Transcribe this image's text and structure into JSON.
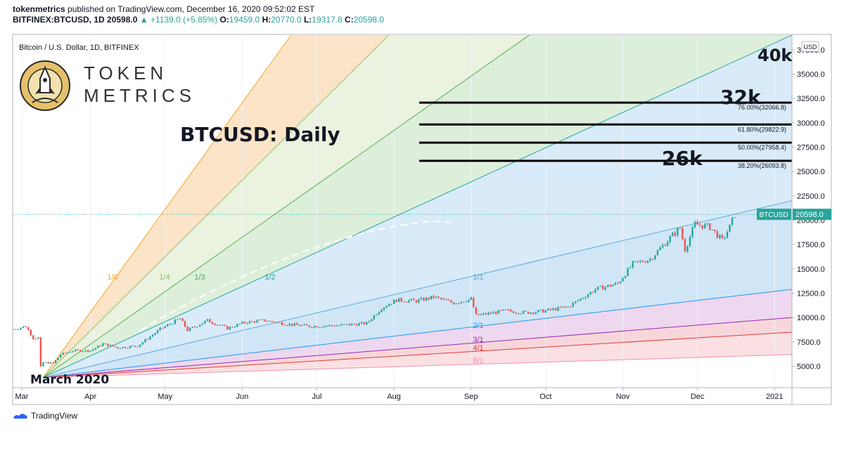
{
  "header": {
    "publisher": "tokenmetrics",
    "published_text": " published on TradingView.com, December 16, 2020 09:52:02 EST",
    "symbol": "BITFINEX:BTCUSD, 1D",
    "last": "20598.0",
    "change": "▲ +1139.0 (+5.85%)",
    "o_label": "O:",
    "o_value": "19459.0",
    "h_label": "H:",
    "h_value": "20770.0",
    "l_label": "L:",
    "l_value": "19317.8",
    "c_label": "C:",
    "c_value": "20598.0"
  },
  "pane_title": "Bitcoin / U.S. Dollar, 1D, BITFINEX",
  "logo": {
    "line1": "TOKEN",
    "line2": "METRICS"
  },
  "chart_title": "BTCUSD: Daily",
  "currency": "USD",
  "price_tag": "BTCUSD",
  "annotations": {
    "k40": "40k",
    "k32": "32k",
    "k26": "26k",
    "march": "March 2020"
  },
  "footer": {
    "brand": "TradingView"
  },
  "colors": {
    "up": "#26a69a",
    "down": "#ef5350",
    "tag": "#26a69a"
  },
  "chart_data": {
    "type": "line",
    "title": "BTCUSD: Daily",
    "x_ticks": [
      "Mar",
      "Apr",
      "May",
      "Jun",
      "Jul",
      "Aug",
      "Sep",
      "Oct",
      "Nov",
      "Dec",
      "2021"
    ],
    "y_ticks": [
      "5000.0",
      "7500.0",
      "10000.0",
      "12500.0",
      "15000.0",
      "17500.0",
      "20000.0",
      "22500.0",
      "25000.0",
      "27500.0",
      "30000.0",
      "32500.0",
      "35000.0",
      "37500.0"
    ],
    "ylim": [
      2800,
      39000
    ],
    "last_price": "20598.0",
    "fib_levels": [
      {
        "label": "76.00%(32066.8)",
        "price": 32066.8
      },
      {
        "label": "61.80%(29822.9)",
        "price": 29822.9
      },
      {
        "label": "50.00%(27958.4)",
        "price": 27958.4
      },
      {
        "label": "38.20%(26093.8)",
        "price": 26093.8
      }
    ],
    "gann_fan": {
      "origin": {
        "date": "2020-03-13",
        "price": 3850
      },
      "lines": [
        {
          "label": "1/8",
          "color": "#f5a623",
          "end_price": 110000
        },
        {
          "label": "1/4",
          "color": "#8fbf6a",
          "end_price": 80000
        },
        {
          "label": "1/3",
          "color": "#4caf50",
          "end_price": 58000
        },
        {
          "label": "1/2",
          "color": "#26a69a",
          "end_price": 39000
        },
        {
          "label": "1/1",
          "color": "#5aa9d6",
          "end_price": 22000
        },
        {
          "label": "2/1",
          "color": "#2196f3",
          "end_price": 12900
        },
        {
          "label": "3/1",
          "color": "#9c27b0",
          "end_price": 10000
        },
        {
          "label": "4/1",
          "color": "#e53935",
          "end_price": 8500
        },
        {
          "label": "8/1",
          "color": "#f48fb1",
          "end_price": 6200
        }
      ]
    },
    "series": [
      {
        "values": [
          {
            "d": "2020-03-01",
            "p": 8800
          },
          {
            "d": "2020-03-06",
            "p": 9100
          },
          {
            "d": "2020-03-09",
            "p": 7900
          },
          {
            "d": "2020-03-11",
            "p": 7900
          },
          {
            "d": "2020-03-12",
            "p": 4900
          },
          {
            "d": "2020-03-13",
            "p": 5400
          },
          {
            "d": "2020-03-17",
            "p": 5300
          },
          {
            "d": "2020-03-20",
            "p": 6200
          },
          {
            "d": "2020-03-25",
            "p": 6600
          },
          {
            "d": "2020-04-01",
            "p": 6600
          },
          {
            "d": "2020-04-06",
            "p": 7300
          },
          {
            "d": "2020-04-12",
            "p": 6900
          },
          {
            "d": "2020-04-20",
            "p": 7100
          },
          {
            "d": "2020-04-29",
            "p": 8800
          },
          {
            "d": "2020-05-07",
            "p": 9900
          },
          {
            "d": "2020-05-10",
            "p": 8700
          },
          {
            "d": "2020-05-18",
            "p": 9700
          },
          {
            "d": "2020-05-26",
            "p": 8900
          },
          {
            "d": "2020-06-02",
            "p": 9500
          },
          {
            "d": "2020-06-10",
            "p": 9700
          },
          {
            "d": "2020-06-20",
            "p": 9300
          },
          {
            "d": "2020-06-28",
            "p": 9100
          },
          {
            "d": "2020-07-10",
            "p": 9200
          },
          {
            "d": "2020-07-21",
            "p": 9400
          },
          {
            "d": "2020-07-27",
            "p": 11000
          },
          {
            "d": "2020-08-02",
            "p": 11800
          },
          {
            "d": "2020-08-10",
            "p": 11700
          },
          {
            "d": "2020-08-17",
            "p": 12100
          },
          {
            "d": "2020-08-25",
            "p": 11500
          },
          {
            "d": "2020-09-01",
            "p": 11900
          },
          {
            "d": "2020-09-03",
            "p": 10200
          },
          {
            "d": "2020-09-15",
            "p": 10700
          },
          {
            "d": "2020-09-23",
            "p": 10500
          },
          {
            "d": "2020-10-01",
            "p": 10700
          },
          {
            "d": "2020-10-10",
            "p": 11100
          },
          {
            "d": "2020-10-21",
            "p": 12900
          },
          {
            "d": "2020-10-30",
            "p": 13500
          },
          {
            "d": "2020-11-05",
            "p": 15500
          },
          {
            "d": "2020-11-12",
            "p": 16000
          },
          {
            "d": "2020-11-20",
            "p": 18200
          },
          {
            "d": "2020-11-24",
            "p": 19200
          },
          {
            "d": "2020-11-26",
            "p": 17000
          },
          {
            "d": "2020-11-30",
            "p": 19600
          },
          {
            "d": "2020-12-06",
            "p": 19300
          },
          {
            "d": "2020-12-11",
            "p": 17900
          },
          {
            "d": "2020-12-14",
            "p": 19300
          },
          {
            "d": "2020-12-16",
            "p": 20598
          }
        ]
      }
    ]
  }
}
